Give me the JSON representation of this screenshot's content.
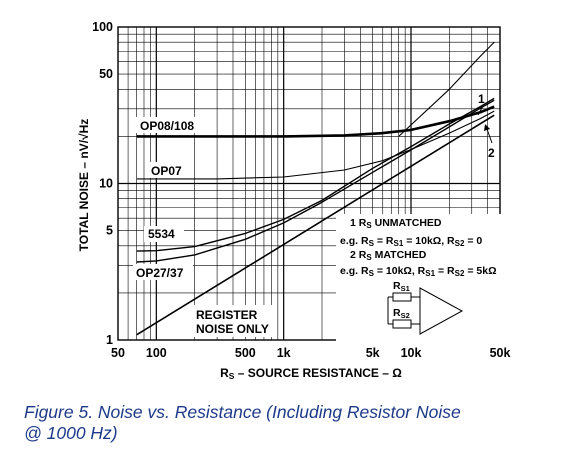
{
  "chart_data": {
    "type": "line",
    "x_scale": "log",
    "y_scale": "log",
    "xlim": [
      50,
      50000
    ],
    "ylim": [
      1,
      100
    ],
    "grid": true,
    "xlabel_prefix": "R",
    "xlabel_sub": "S",
    "xlabel_rest": " – SOURCE RESISTANCE – Ω",
    "ylabel": "TOTAL NOISE – nV/√Hz",
    "x_ticks": [
      {
        "value": 50,
        "label": "50"
      },
      {
        "value": 100,
        "label": "100"
      },
      {
        "value": 500,
        "label": "500"
      },
      {
        "value": 1000,
        "label": "1k"
      },
      {
        "value": 5000,
        "label": "5k"
      },
      {
        "value": 10000,
        "label": "10k"
      },
      {
        "value": 50000,
        "label": "50k"
      }
    ],
    "y_ticks": [
      {
        "value": 1,
        "label": "1"
      },
      {
        "value": 5,
        "label": "5"
      },
      {
        "value": 10,
        "label": "10"
      },
      {
        "value": 50,
        "label": "50"
      },
      {
        "value": 100,
        "label": "100"
      }
    ],
    "series": [
      {
        "name": "OP08/108",
        "points": [
          [
            70,
            20
          ],
          [
            200,
            20
          ],
          [
            1000,
            20
          ],
          [
            3000,
            20.3
          ],
          [
            6000,
            21
          ],
          [
            10000,
            22
          ],
          [
            20000,
            25
          ],
          [
            35000,
            28.5
          ],
          [
            45000,
            31
          ]
        ]
      },
      {
        "name": "OP07",
        "points": [
          [
            70,
            10.7
          ],
          [
            300,
            10.7
          ],
          [
            1000,
            11
          ],
          [
            3000,
            12.2
          ],
          [
            6000,
            14
          ],
          [
            10000,
            16.5
          ],
          [
            20000,
            21
          ],
          [
            35000,
            26
          ],
          [
            45000,
            29
          ]
        ]
      },
      {
        "name": "5534",
        "points": [
          [
            70,
            3.7
          ],
          [
            100,
            3.72
          ],
          [
            200,
            3.95
          ],
          [
            500,
            4.8
          ],
          [
            1000,
            5.9
          ],
          [
            2000,
            7.8
          ],
          [
            5000,
            12.5
          ],
          [
            10000,
            17.2
          ],
          [
            20000,
            24
          ],
          [
            35000,
            31
          ],
          [
            45000,
            35
          ]
        ]
      },
      {
        "name": "OP27/37",
        "points": [
          [
            70,
            3.15
          ],
          [
            100,
            3.2
          ],
          [
            200,
            3.5
          ],
          [
            500,
            4.4
          ],
          [
            1000,
            5.6
          ],
          [
            2000,
            7.6
          ],
          [
            5000,
            11.8
          ],
          [
            10000,
            16.4
          ],
          [
            20000,
            23
          ],
          [
            35000,
            30.3
          ],
          [
            45000,
            34
          ]
        ]
      },
      {
        "name": "REGISTER NOISE ONLY",
        "points": [
          [
            70,
            1.08
          ],
          [
            45000,
            27.3
          ]
        ]
      },
      {
        "name": "1",
        "points": [
          [
            8000,
            20
          ],
          [
            20000,
            40
          ],
          [
            35000,
            65
          ],
          [
            45000,
            80
          ]
        ]
      }
    ],
    "annotations": {
      "label_1": "1",
      "label_2": "2",
      "legend_line1": "1 RS UNMATCHED",
      "legend_line2": "e.g. RS = RS1 = 10kΩ, RS2 = 0",
      "legend_line3": "2 RS MATCHED",
      "legend_line4": "e.g. RS = 10kΩ, RS1 = RS2 = 5kΩ",
      "rs1": "RS1",
      "rs2": "RS2"
    }
  },
  "caption_line1": "Figure 5. Noise vs. Resistance (Including Resistor Noise",
  "caption_line2": "@ 1000 Hz)"
}
